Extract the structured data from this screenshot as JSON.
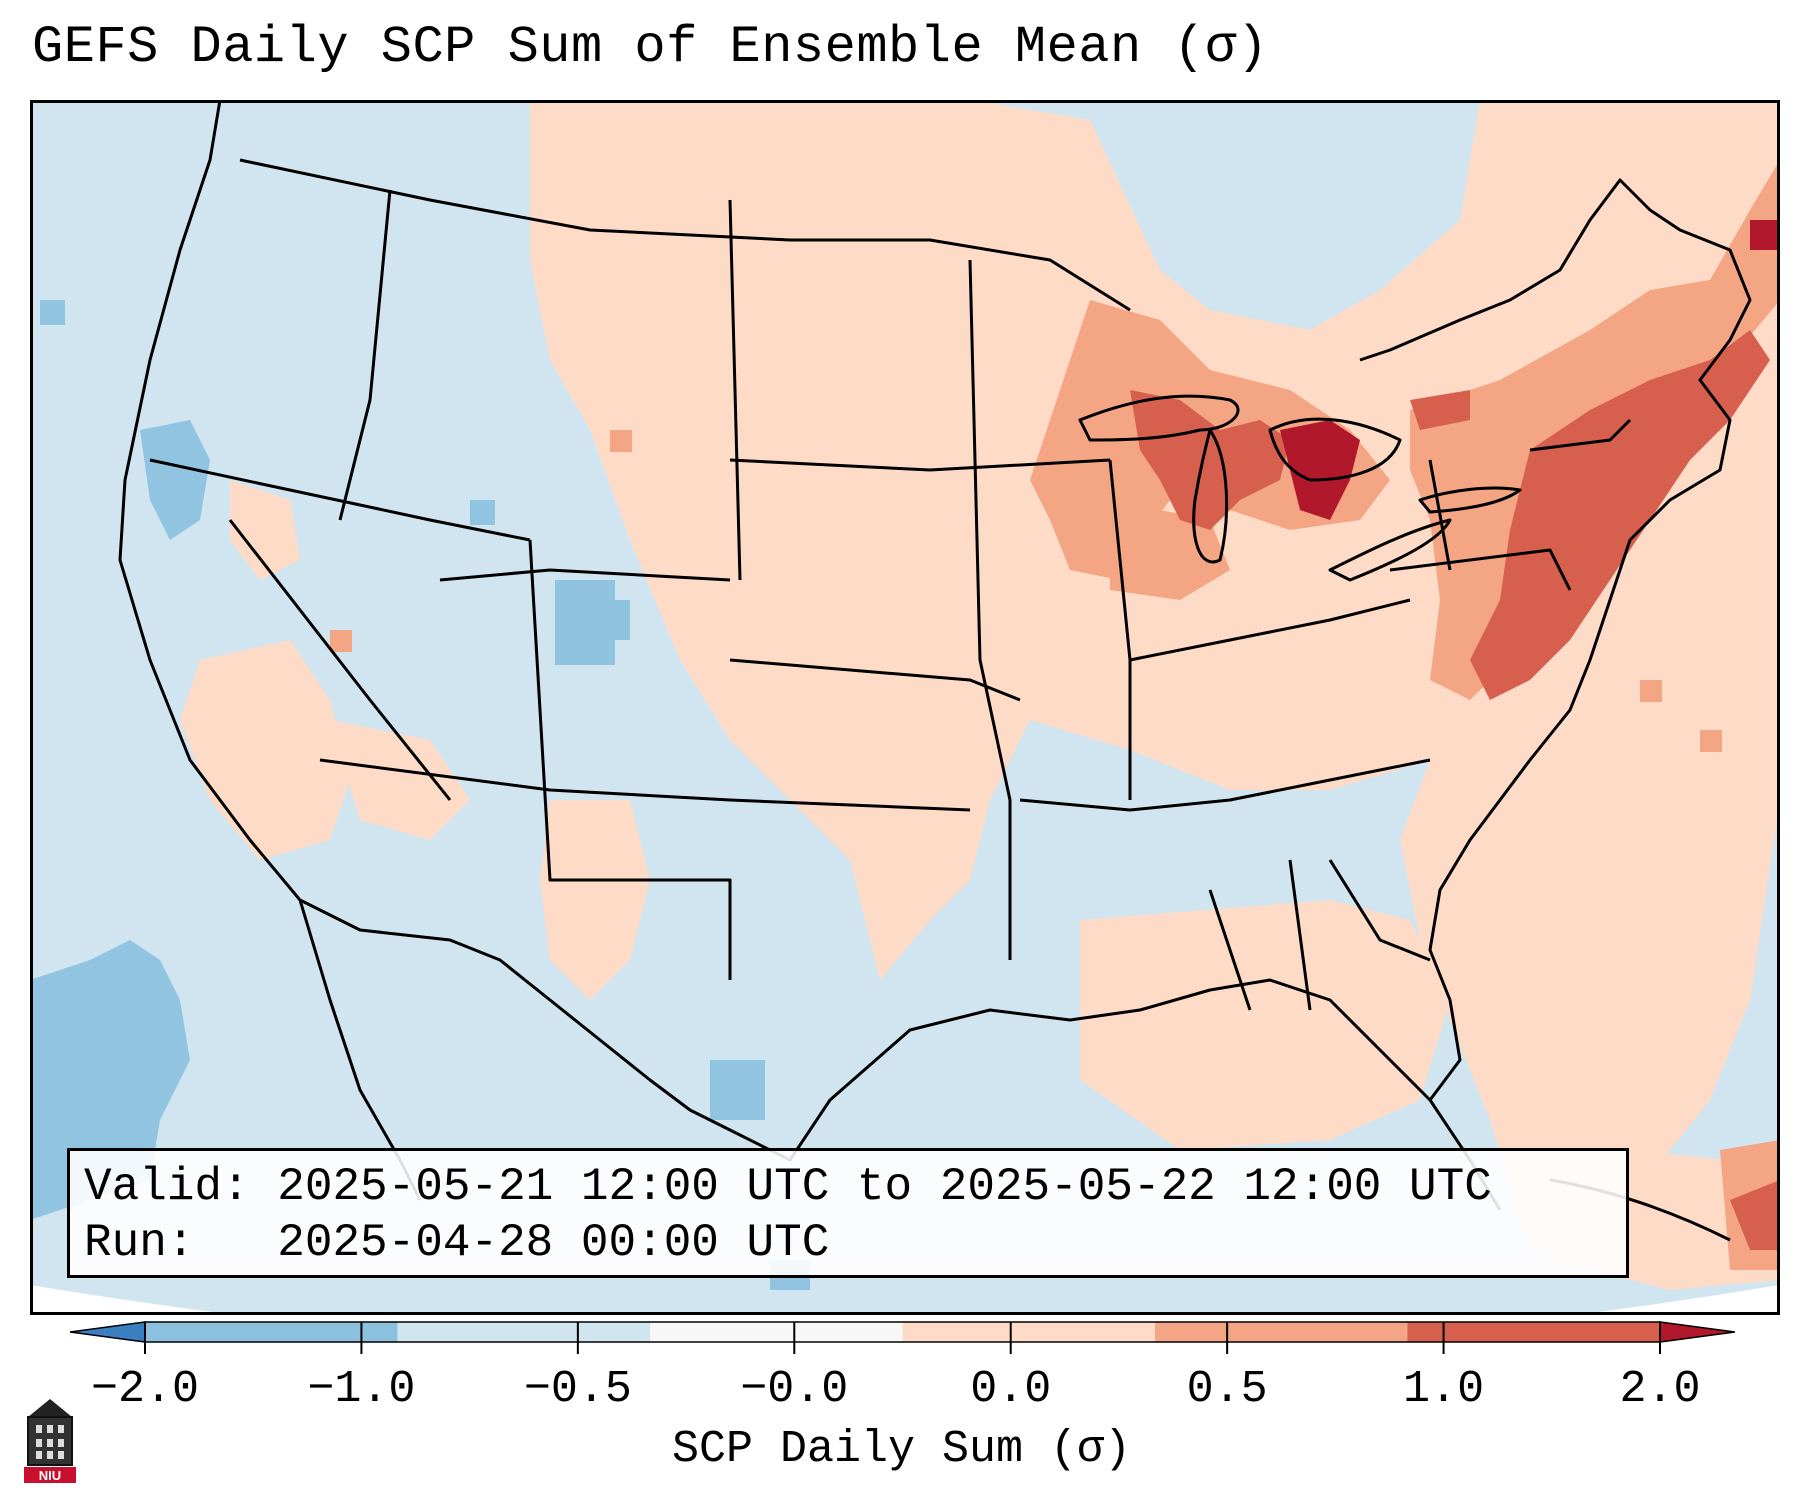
{
  "title": "GEFS Daily SCP Sum of Ensemble Mean (σ)",
  "info": {
    "valid_line": "Valid: 2025-05-21 12:00 UTC to 2025-05-22 12:00 UTC",
    "run_line": "Run:   2025-04-28 00:00 UTC"
  },
  "colorbar": {
    "label": "SCP Daily Sum (σ)",
    "ticks": [
      "−2.0",
      "−1.0",
      "−0.5",
      "−0.0",
      "0.0",
      "0.5",
      "1.0",
      "2.0"
    ],
    "colors": [
      "#3a80bf",
      "#8cc2df",
      "#d1e5f0",
      "#f7f7f7",
      "#fddbc7",
      "#f3a584",
      "#d6604d",
      "#b2182b"
    ],
    "extend": "both"
  },
  "map": {
    "background_color": "#d1e5f0",
    "border_color": "#000000"
  },
  "logo": {
    "text": "NIU"
  }
}
